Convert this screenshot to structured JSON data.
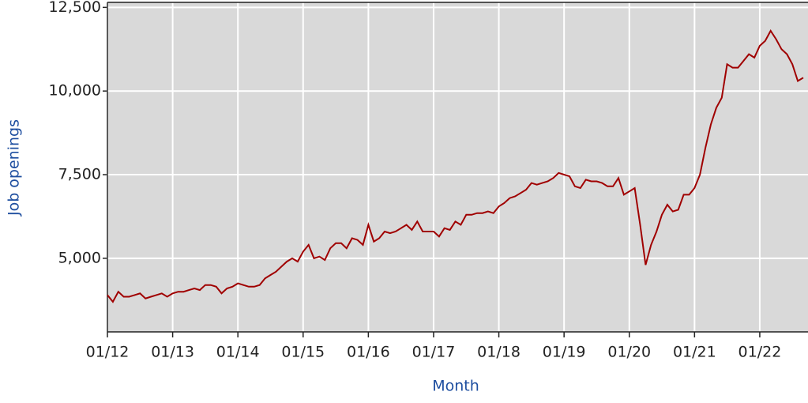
{
  "chart_data": {
    "type": "line",
    "x_label": "Month",
    "y_label": "Job openings",
    "color": "#a00000",
    "x": [
      "01/12",
      "02/12",
      "03/12",
      "04/12",
      "05/12",
      "06/12",
      "07/12",
      "08/12",
      "09/12",
      "10/12",
      "11/12",
      "12/12",
      "01/13",
      "02/13",
      "03/13",
      "04/13",
      "05/13",
      "06/13",
      "07/13",
      "08/13",
      "09/13",
      "10/13",
      "11/13",
      "12/13",
      "01/14",
      "02/14",
      "03/14",
      "04/14",
      "05/14",
      "06/14",
      "07/14",
      "08/14",
      "09/14",
      "10/14",
      "11/14",
      "12/14",
      "01/15",
      "02/15",
      "03/15",
      "04/15",
      "05/15",
      "06/15",
      "07/15",
      "08/15",
      "09/15",
      "10/15",
      "11/15",
      "12/15",
      "01/16",
      "02/16",
      "03/16",
      "04/16",
      "05/16",
      "06/16",
      "07/16",
      "08/16",
      "09/16",
      "10/16",
      "11/16",
      "12/16",
      "01/17",
      "02/17",
      "03/17",
      "04/17",
      "05/17",
      "06/17",
      "07/17",
      "08/17",
      "09/17",
      "10/17",
      "11/17",
      "12/17",
      "01/18",
      "02/18",
      "03/18",
      "04/18",
      "05/18",
      "06/18",
      "07/18",
      "08/18",
      "09/18",
      "10/18",
      "11/18",
      "12/18",
      "01/19",
      "02/19",
      "03/19",
      "04/19",
      "05/19",
      "06/19",
      "07/19",
      "08/19",
      "09/19",
      "10/19",
      "11/19",
      "12/19",
      "01/20",
      "02/20",
      "03/20",
      "04/20",
      "05/20",
      "06/20",
      "07/20",
      "08/20",
      "09/20",
      "10/20",
      "11/20",
      "12/20",
      "01/21",
      "02/21",
      "03/21",
      "04/21",
      "05/21",
      "06/21",
      "07/21",
      "08/21",
      "09/21",
      "10/21",
      "11/21",
      "12/21",
      "01/22",
      "02/22",
      "03/22",
      "04/22",
      "05/22",
      "06/22",
      "07/22",
      "08/22",
      "09/22"
    ],
    "values": [
      3900,
      3700,
      4000,
      3850,
      3850,
      3900,
      3950,
      3800,
      3850,
      3900,
      3950,
      3850,
      3950,
      4000,
      4000,
      4050,
      4100,
      4050,
      4200,
      4200,
      4150,
      3950,
      4100,
      4150,
      4250,
      4200,
      4150,
      4150,
      4200,
      4400,
      4500,
      4600,
      4750,
      4900,
      5000,
      4900,
      5200,
      5400,
      5000,
      5050,
      4950,
      5300,
      5450,
      5450,
      5300,
      5600,
      5550,
      5400,
      6000,
      5500,
      5600,
      5800,
      5750,
      5800,
      5900,
      6000,
      5850,
      6100,
      5800,
      5800,
      5800,
      5650,
      5900,
      5850,
      6100,
      6000,
      6300,
      6300,
      6350,
      6350,
      6400,
      6350,
      6550,
      6650,
      6800,
      6850,
      6950,
      7050,
      7250,
      7200,
      7250,
      7300,
      7400,
      7550,
      7500,
      7450,
      7150,
      7100,
      7350,
      7300,
      7300,
      7250,
      7150,
      7150,
      7400,
      6900,
      7000,
      7100,
      6000,
      4800,
      5400,
      5800,
      6300,
      6600,
      6400,
      6450,
      6900,
      6900,
      7100,
      7500,
      8300,
      9000,
      9500,
      9800,
      10800,
      10700,
      10700,
      10900,
      11100,
      11000,
      11350,
      11500,
      11800,
      11550,
      11250,
      11100,
      10800,
      10300,
      10400
    ],
    "xlim": [
      "01/12",
      "09/22"
    ],
    "xticks": [
      "01/12",
      "01/13",
      "01/14",
      "01/15",
      "01/16",
      "01/17",
      "01/18",
      "01/19",
      "01/20",
      "01/21",
      "01/22"
    ],
    "ylim": [
      2800,
      12650
    ],
    "yticks": [
      {
        "value": 5000,
        "label": "5,000"
      },
      {
        "value": 7500,
        "label": "7,500"
      },
      {
        "value": 10000,
        "label": "10,000"
      },
      {
        "value": 12500,
        "label": "12,500"
      }
    ],
    "grid": true
  }
}
